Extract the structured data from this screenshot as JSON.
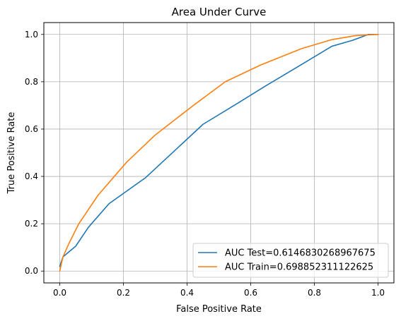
{
  "chart_data": {
    "type": "line",
    "title": "Area Under Curve",
    "xlabel": "False Positive Rate",
    "ylabel": "True Positive Rate",
    "xlim": [
      -0.05,
      1.05
    ],
    "ylim": [
      -0.05,
      1.05
    ],
    "xticks": [
      0.0,
      0.2,
      0.4,
      0.6,
      0.8,
      1.0
    ],
    "xtick_labels": [
      "0.0",
      "0.2",
      "0.4",
      "0.6",
      "0.8",
      "1.0"
    ],
    "yticks": [
      0.0,
      0.2,
      0.4,
      0.6,
      0.8,
      1.0
    ],
    "ytick_labels": [
      "0.0",
      "0.2",
      "0.4",
      "0.6",
      "0.8",
      "1.0"
    ],
    "grid": true,
    "legend_position": "lower-right",
    "series": [
      {
        "name": "AUC Test=0.6146830268967675",
        "color": "#1f77b4",
        "x": [
          0.0,
          0.01,
          0.05,
          0.09,
          0.155,
          0.27,
          0.45,
          0.56,
          0.65,
          0.75,
          0.855,
          0.92,
          0.97,
          1.0
        ],
        "y": [
          0.02,
          0.06,
          0.105,
          0.185,
          0.285,
          0.395,
          0.62,
          0.71,
          0.785,
          0.865,
          0.95,
          0.975,
          1.0,
          1.0
        ]
      },
      {
        "name": "AUC Train=0.698852311122625",
        "color": "#ff7f0e",
        "x": [
          0.0,
          0.01,
          0.03,
          0.06,
          0.12,
          0.21,
          0.3,
          0.42,
          0.52,
          0.63,
          0.76,
          0.855,
          0.93,
          1.0
        ],
        "y": [
          0.0,
          0.06,
          0.12,
          0.2,
          0.32,
          0.46,
          0.575,
          0.7,
          0.8,
          0.87,
          0.94,
          0.978,
          0.995,
          1.0
        ]
      }
    ]
  }
}
